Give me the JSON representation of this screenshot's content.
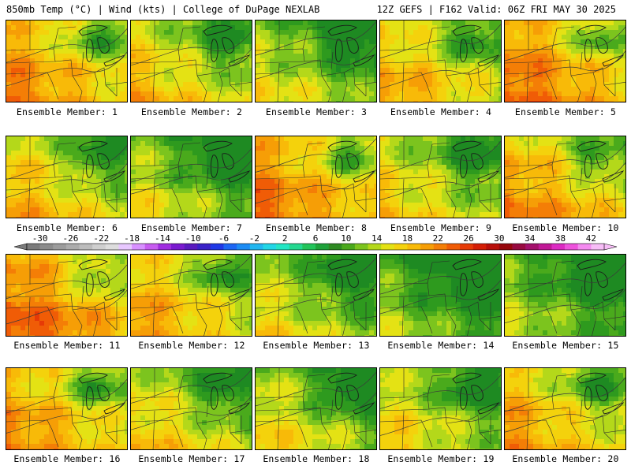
{
  "header": {
    "left": "850mb Temp (°C) | Wind (kts) | College of DuPage NEXLAB",
    "right": "12Z GEFS | F162 Valid: 06Z FRI MAY 30 2025"
  },
  "colorbar": {
    "labels": [
      "-30",
      "-26",
      "-22",
      "-18",
      "-14",
      "-10",
      "-6",
      "-2",
      "2",
      "6",
      "10",
      "14",
      "18",
      "22",
      "26",
      "30",
      "34",
      "38",
      "42"
    ],
    "colors": [
      "#7b7b7b",
      "#8c8c8c",
      "#9c9c9c",
      "#acacac",
      "#bcbcbc",
      "#cfcfcf",
      "#dddddd",
      "#e8c8ff",
      "#d890ff",
      "#c75cf0",
      "#a02ce0",
      "#7a1ad0",
      "#5a1abf",
      "#3a22c8",
      "#1f38e6",
      "#1d66f4",
      "#1c8cf4",
      "#21b6f0",
      "#22d6e6",
      "#23e6c4",
      "#24d890",
      "#22c45a",
      "#1ea23a",
      "#2e8a22",
      "#4aa81c",
      "#7cc41e",
      "#b4d81a",
      "#e4e214",
      "#f4d20c",
      "#f8ba08",
      "#f69e06",
      "#f47e06",
      "#f05c06",
      "#e63a06",
      "#d41e06",
      "#b80e0a",
      "#96060c",
      "#980a40",
      "#a4106c",
      "#c01896",
      "#dc2ac2",
      "#ee52dc",
      "#f48af0",
      "#f7bdf7"
    ]
  },
  "panels": [
    {
      "caption": "Ensemble Member: 1",
      "warmth": 0.62
    },
    {
      "caption": "Ensemble Member: 2",
      "warmth": 0.45
    },
    {
      "caption": "Ensemble Member: 3",
      "warmth": 0.3
    },
    {
      "caption": "Ensemble Member: 4",
      "warmth": 0.52
    },
    {
      "caption": "Ensemble Member: 5",
      "warmth": 0.7
    },
    {
      "caption": "Ensemble Member: 6",
      "warmth": 0.48
    },
    {
      "caption": "Ensemble Member: 7",
      "warmth": 0.28
    },
    {
      "caption": "Ensemble Member: 8",
      "warmth": 0.66
    },
    {
      "caption": "Ensemble Member: 9",
      "warmth": 0.4
    },
    {
      "caption": "Ensemble Member: 10",
      "warmth": 0.6
    },
    {
      "caption": "Ensemble Member: 11",
      "warmth": 0.72
    },
    {
      "caption": "Ensemble Member: 12",
      "warmth": 0.55
    },
    {
      "caption": "Ensemble Member: 13",
      "warmth": 0.33
    },
    {
      "caption": "Ensemble Member: 14",
      "warmth": 0.15
    },
    {
      "caption": "Ensemble Member: 15",
      "warmth": 0.2
    },
    {
      "caption": "Ensemble Member: 16",
      "warmth": 0.6
    },
    {
      "caption": "Ensemble Member: 17",
      "warmth": 0.42
    },
    {
      "caption": "Ensemble Member: 18",
      "warmth": 0.36
    },
    {
      "caption": "Ensemble Member: 19",
      "warmth": 0.38
    },
    {
      "caption": "Ensemble Member: 20",
      "warmth": 0.55
    }
  ]
}
